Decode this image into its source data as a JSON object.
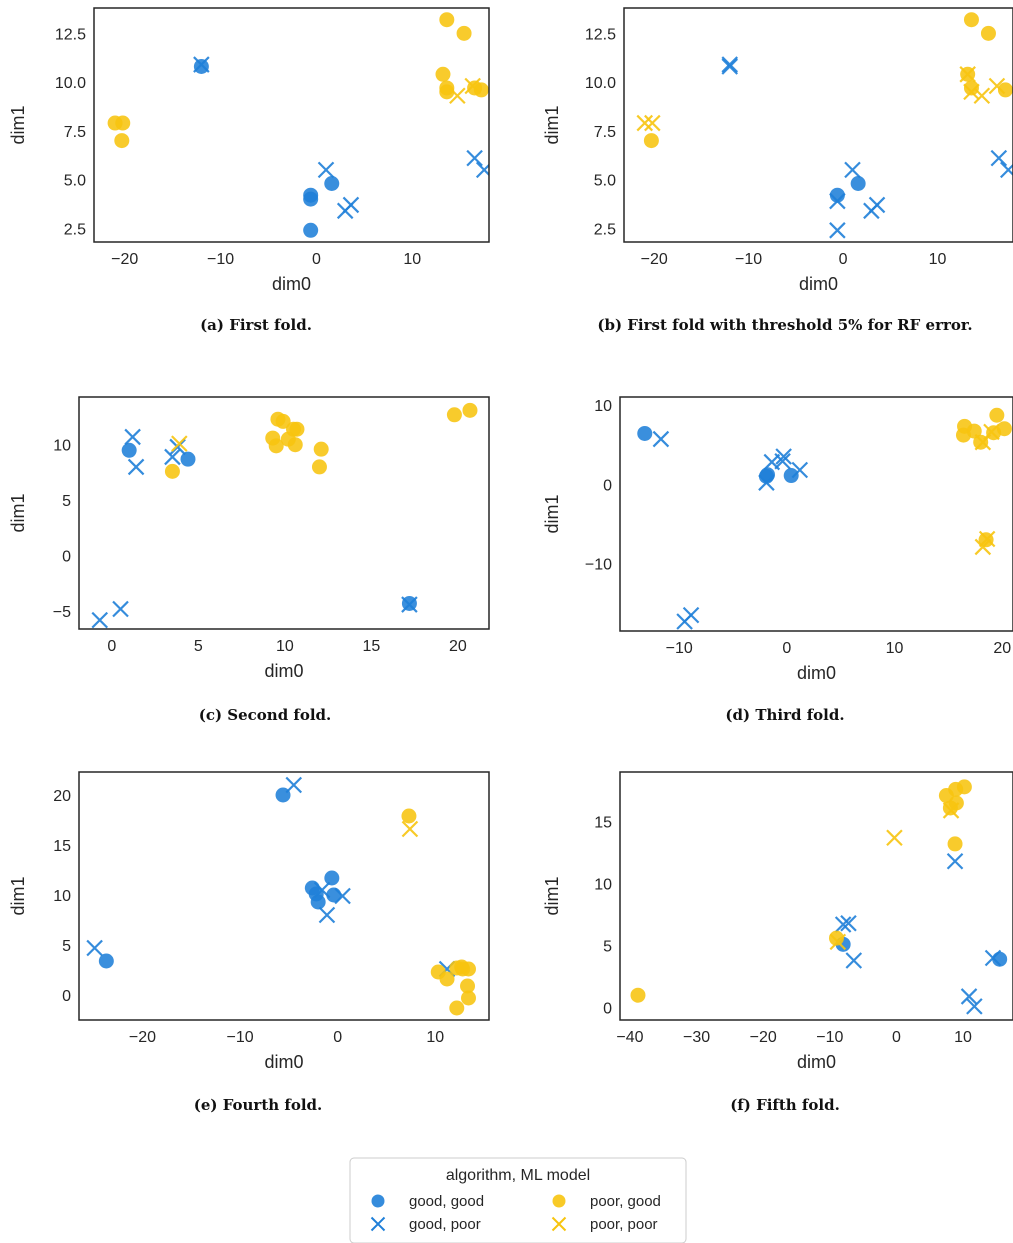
{
  "colors": {
    "good": "#1f7fd8",
    "poor": "#f7c40f",
    "frame": "#262626"
  },
  "legend": {
    "title": "algorithm, ML model",
    "entries": [
      {
        "label": "good, good",
        "color": "good",
        "marker": "circle"
      },
      {
        "label": "good, poor",
        "color": "good",
        "marker": "x"
      },
      {
        "label": "poor, good",
        "color": "poor",
        "marker": "circle"
      },
      {
        "label": "poor, poor",
        "color": "poor",
        "marker": "x"
      }
    ]
  },
  "chart_data": [
    {
      "type": "scatter",
      "caption": "(a) First fold.",
      "xlabel": "dim0",
      "ylabel": "dim1",
      "xlim": [
        -23.2,
        18.0
      ],
      "ylim": [
        1.8,
        13.8
      ],
      "xticks": [
        -20,
        -10,
        0,
        10
      ],
      "xtick_labels": [
        "−20",
        "−10",
        "0",
        "10"
      ],
      "yticks": [
        2.5,
        5.0,
        7.5,
        10.0,
        12.5
      ],
      "ytick_labels": [
        "2.5",
        "5.0",
        "7.5",
        "10.0",
        "12.5"
      ],
      "series": [
        {
          "name": "good, good",
          "color": "good",
          "marker": "circle",
          "points": [
            [
              -12,
              10.8
            ],
            [
              -0.6,
              4.2
            ],
            [
              -0.6,
              4.0
            ],
            [
              -0.6,
              2.4
            ],
            [
              1.6,
              4.8
            ]
          ]
        },
        {
          "name": "good, poor",
          "color": "good",
          "marker": "x",
          "points": [
            [
              -12,
              10.9
            ],
            [
              1.0,
              5.5
            ],
            [
              3.0,
              3.4
            ],
            [
              3.6,
              3.7
            ],
            [
              16.5,
              6.1
            ],
            [
              17.5,
              5.5
            ]
          ]
        },
        {
          "name": "poor, good",
          "color": "poor",
          "marker": "circle",
          "points": [
            [
              -21,
              7.9
            ],
            [
              -20.2,
              7.9
            ],
            [
              -20.3,
              7.0
            ],
            [
              13.6,
              13.2
            ],
            [
              15.4,
              12.5
            ],
            [
              13.2,
              10.4
            ],
            [
              13.6,
              9.7
            ],
            [
              13.6,
              9.5
            ],
            [
              16.5,
              9.7
            ],
            [
              17.2,
              9.6
            ]
          ]
        },
        {
          "name": "poor, poor",
          "color": "poor",
          "marker": "x",
          "points": [
            [
              14.7,
              9.3
            ],
            [
              16.3,
              9.8
            ]
          ]
        }
      ]
    },
    {
      "type": "scatter",
      "caption": "(b) First fold with threshold 5% for RF error.",
      "xlabel": "dim0",
      "ylabel": "dim1",
      "xlim": [
        -23.2,
        18.0
      ],
      "ylim": [
        1.8,
        13.8
      ],
      "xticks": [
        -20,
        -10,
        0,
        10
      ],
      "xtick_labels": [
        "−20",
        "−10",
        "0",
        "10"
      ],
      "yticks": [
        2.5,
        5.0,
        7.5,
        10.0,
        12.5
      ],
      "ytick_labels": [
        "2.5",
        "5.0",
        "7.5",
        "10.0",
        "12.5"
      ],
      "series": [
        {
          "name": "good, good",
          "color": "good",
          "marker": "circle",
          "points": [
            [
              -0.6,
              4.2
            ],
            [
              1.6,
              4.8
            ]
          ]
        },
        {
          "name": "good, poor",
          "color": "good",
          "marker": "x",
          "points": [
            [
              -12,
              10.9
            ],
            [
              -12,
              10.8
            ],
            [
              -0.6,
              3.9
            ],
            [
              -0.6,
              2.4
            ],
            [
              1.0,
              5.5
            ],
            [
              3.0,
              3.4
            ],
            [
              3.6,
              3.7
            ],
            [
              16.5,
              6.1
            ],
            [
              17.5,
              5.5
            ]
          ]
        },
        {
          "name": "poor, good",
          "color": "poor",
          "marker": "circle",
          "points": [
            [
              -20.3,
              7.0
            ],
            [
              13.6,
              13.2
            ],
            [
              15.4,
              12.5
            ],
            [
              13.2,
              10.4
            ],
            [
              13.6,
              9.7
            ],
            [
              17.2,
              9.6
            ]
          ]
        },
        {
          "name": "poor, poor",
          "color": "poor",
          "marker": "x",
          "points": [
            [
              -21,
              7.9
            ],
            [
              -20.2,
              7.9
            ],
            [
              13.2,
              10.4
            ],
            [
              13.6,
              9.5
            ],
            [
              14.7,
              9.3
            ],
            [
              16.3,
              9.8
            ]
          ]
        }
      ]
    },
    {
      "type": "scatter",
      "caption": "(c) Second fold.",
      "xlabel": "dim0",
      "ylabel": "dim1",
      "xlim": [
        -1.9,
        21.8
      ],
      "ylim": [
        -6.6,
        14.3
      ],
      "xticks": [
        0,
        5,
        10,
        15,
        20
      ],
      "xtick_labels": [
        "0",
        "5",
        "10",
        "15",
        "20"
      ],
      "yticks": [
        -5,
        0,
        5,
        10
      ],
      "ytick_labels": [
        "−5",
        "0",
        "5",
        "10"
      ],
      "series": [
        {
          "name": "good, good",
          "color": "good",
          "marker": "circle",
          "points": [
            [
              1.0,
              9.5
            ],
            [
              4.4,
              8.7
            ],
            [
              17.2,
              -4.3
            ]
          ]
        },
        {
          "name": "good, poor",
          "color": "good",
          "marker": "x",
          "points": [
            [
              1.2,
              10.7
            ],
            [
              1.4,
              8.0
            ],
            [
              3.5,
              8.9
            ],
            [
              3.8,
              9.8
            ],
            [
              0.5,
              -4.8
            ],
            [
              -0.7,
              -5.8
            ],
            [
              17.2,
              -4.4
            ]
          ]
        },
        {
          "name": "poor, good",
          "color": "poor",
          "marker": "circle",
          "points": [
            [
              3.5,
              7.6
            ],
            [
              9.3,
              10.6
            ],
            [
              9.6,
              12.3
            ],
            [
              9.9,
              12.1
            ],
            [
              9.5,
              9.9
            ],
            [
              10.2,
              10.5
            ],
            [
              10.5,
              11.4
            ],
            [
              10.7,
              11.4
            ],
            [
              10.6,
              10.0
            ],
            [
              12.1,
              9.6
            ],
            [
              12.0,
              8.0
            ],
            [
              19.8,
              12.7
            ],
            [
              20.7,
              13.1
            ]
          ]
        },
        {
          "name": "poor, poor",
          "color": "poor",
          "marker": "x",
          "points": [
            [
              3.9,
              10.1
            ]
          ]
        }
      ]
    },
    {
      "type": "scatter",
      "caption": "(d) Third fold.",
      "xlabel": "dim0",
      "ylabel": "dim1",
      "xlim": [
        -15.5,
        21.0
      ],
      "ylim": [
        -18.5,
        11.0
      ],
      "xticks": [
        -10,
        0,
        10,
        20
      ],
      "xtick_labels": [
        "−10",
        "0",
        "10",
        "20"
      ],
      "yticks": [
        -10,
        0,
        10
      ],
      "ytick_labels": [
        "−10",
        "0",
        "10"
      ],
      "series": [
        {
          "name": "good, good",
          "color": "good",
          "marker": "circle",
          "points": [
            [
              -13.2,
              6.4
            ],
            [
              -1.8,
              1.2
            ],
            [
              -1.9,
              1.0
            ],
            [
              0.4,
              1.1
            ]
          ]
        },
        {
          "name": "good, poor",
          "color": "good",
          "marker": "x",
          "points": [
            [
              -11.7,
              5.7
            ],
            [
              -1.4,
              2.8
            ],
            [
              -0.3,
              3.5
            ],
            [
              -0.4,
              2.9
            ],
            [
              1.2,
              1.8
            ],
            [
              -1.9,
              0.2
            ],
            [
              -9.5,
              -17.3
            ],
            [
              -8.9,
              -16.5
            ]
          ]
        },
        {
          "name": "poor, good",
          "color": "poor",
          "marker": "circle",
          "points": [
            [
              16.5,
              7.3
            ],
            [
              16.4,
              6.2
            ],
            [
              17.4,
              6.7
            ],
            [
              18.0,
              5.3
            ],
            [
              19.5,
              8.7
            ],
            [
              20.2,
              7.0
            ],
            [
              19.2,
              6.5
            ],
            [
              18.5,
              -7.0
            ]
          ]
        },
        {
          "name": "poor, poor",
          "color": "poor",
          "marker": "x",
          "points": [
            [
              18.2,
              5.3
            ],
            [
              19.0,
              6.6
            ],
            [
              18.6,
              -6.9
            ],
            [
              18.2,
              -7.9
            ]
          ]
        }
      ]
    },
    {
      "type": "scatter",
      "caption": "(e) Fourth fold.",
      "xlabel": "dim0",
      "ylabel": "dim1",
      "xlim": [
        -26.5,
        15.5
      ],
      "ylim": [
        -2.5,
        22.3
      ],
      "xticks": [
        -20,
        -10,
        0,
        10
      ],
      "xtick_labels": [
        "−20",
        "−10",
        "0",
        "10"
      ],
      "yticks": [
        0,
        5,
        10,
        15,
        20
      ],
      "ytick_labels": [
        "0",
        "5",
        "10",
        "15",
        "20"
      ],
      "series": [
        {
          "name": "good, good",
          "color": "good",
          "marker": "circle",
          "points": [
            [
              -23.7,
              3.4
            ],
            [
              -5.6,
              20.0
            ],
            [
              -2.6,
              10.7
            ],
            [
              -2.2,
              10.1
            ],
            [
              -2.0,
              9.3
            ],
            [
              -0.6,
              11.7
            ],
            [
              -0.4,
              10.0
            ]
          ]
        },
        {
          "name": "good, poor",
          "color": "good",
          "marker": "x",
          "points": [
            [
              -24.9,
              4.7
            ],
            [
              -4.5,
              21.0
            ],
            [
              -1.6,
              10.5
            ],
            [
              -1.1,
              8.0
            ],
            [
              0.5,
              9.9
            ],
            [
              11.2,
              2.6
            ]
          ]
        },
        {
          "name": "poor, good",
          "color": "poor",
          "marker": "circle",
          "points": [
            [
              7.3,
              17.9
            ],
            [
              10.3,
              2.3
            ],
            [
              11.2,
              1.6
            ],
            [
              12.2,
              2.7
            ],
            [
              12.7,
              2.8
            ],
            [
              13.4,
              2.6
            ],
            [
              13.3,
              0.9
            ],
            [
              13.4,
              -0.3
            ],
            [
              12.2,
              -1.3
            ],
            [
              12.8,
              2.6
            ]
          ]
        },
        {
          "name": "poor, poor",
          "color": "poor",
          "marker": "x",
          "points": [
            [
              7.4,
              16.6
            ]
          ]
        }
      ]
    },
    {
      "type": "scatter",
      "caption": "(f) Fifth fold.",
      "xlabel": "dim0",
      "ylabel": "dim1",
      "xlim": [
        -41.5,
        17.5
      ],
      "ylim": [
        -1.0,
        19.0
      ],
      "xticks": [
        -40,
        -30,
        -20,
        -10,
        0,
        10
      ],
      "xtick_labels": [
        "−40",
        "−30",
        "−20",
        "−10",
        "0",
        "10"
      ],
      "yticks": [
        0,
        5,
        10,
        15
      ],
      "ytick_labels": [
        "0",
        "5",
        "10",
        "15"
      ],
      "series": [
        {
          "name": "good, good",
          "color": "good",
          "marker": "circle",
          "points": [
            [
              -8.0,
              5.1
            ],
            [
              15.5,
              3.9
            ]
          ]
        },
        {
          "name": "good, poor",
          "color": "good",
          "marker": "x",
          "points": [
            [
              -8.0,
              6.7
            ],
            [
              -7.2,
              6.8
            ],
            [
              -6.4,
              3.8
            ],
            [
              8.8,
              11.8
            ],
            [
              14.5,
              4.0
            ],
            [
              10.9,
              0.9
            ],
            [
              11.7,
              0.1
            ]
          ]
        },
        {
          "name": "poor, good",
          "color": "poor",
          "marker": "circle",
          "points": [
            [
              -38.8,
              1.0
            ],
            [
              -9.0,
              5.6
            ],
            [
              7.5,
              17.1
            ],
            [
              8.1,
              16.1
            ],
            [
              8.9,
              17.6
            ],
            [
              9.0,
              16.5
            ],
            [
              10.2,
              17.8
            ],
            [
              8.8,
              13.2
            ]
          ]
        },
        {
          "name": "poor, poor",
          "color": "poor",
          "marker": "x",
          "points": [
            [
              -0.3,
              13.7
            ],
            [
              8.2,
              15.9
            ],
            [
              -8.8,
              5.3
            ]
          ]
        }
      ]
    }
  ]
}
